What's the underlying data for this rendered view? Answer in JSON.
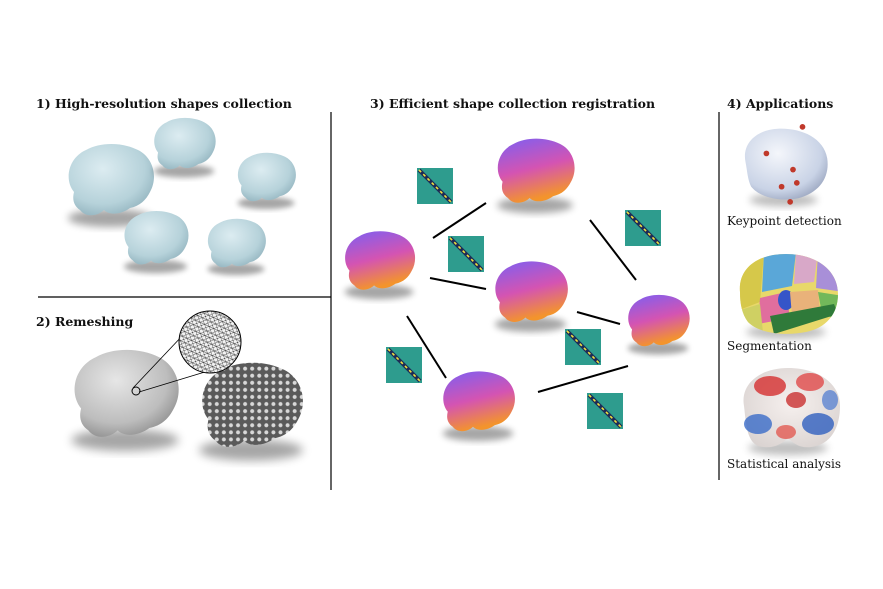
{
  "panels": {
    "collection": {
      "title": "1) High-resolution shapes collection"
    },
    "remeshing": {
      "title": "2) Remeshing"
    },
    "registration": {
      "title": "3) Efficient shape collection registration"
    },
    "applications": {
      "title": "4) Applications",
      "items": [
        {
          "label": "Keypoint detection"
        },
        {
          "label": "Segmentation"
        },
        {
          "label": "Statistical analysis"
        }
      ]
    }
  },
  "colors": {
    "raw_shape": "#bcd6de",
    "remeshed_shape": "#c4c4c4",
    "registered_top": "#7f5cf0",
    "registered_mid": "#d452b0",
    "registered_bottom": "#f08a2e",
    "correspondence_bg": "#2e9c8e",
    "correspondence_diag": "#f2e23c",
    "keypoint": "#c0392b"
  }
}
